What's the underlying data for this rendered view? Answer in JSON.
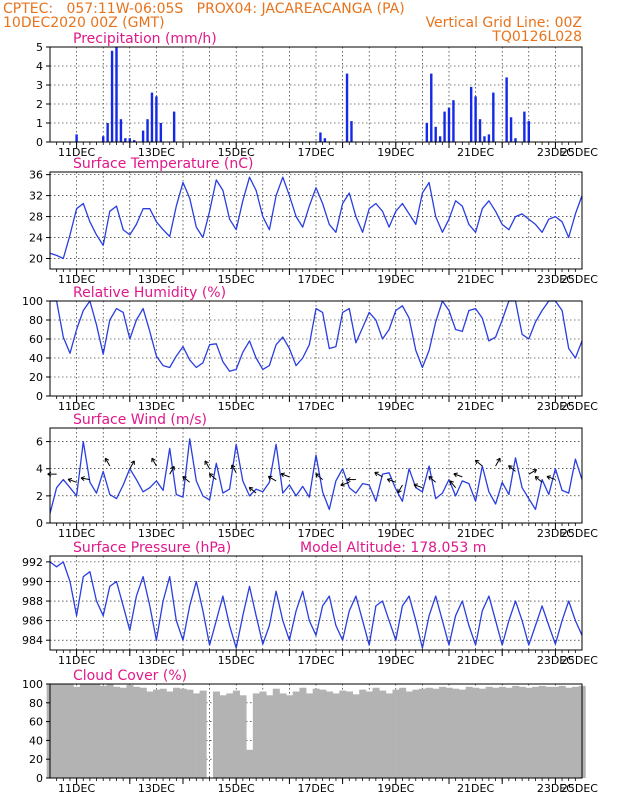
{
  "header": {
    "line1_left": "CPTEC:   057:11W-06:05S   PROX04: JACAREACANGA (PA)",
    "line2_left": "10DEC2020 00Z (GMT)",
    "line2_right": "Vertical Grid Line: 00Z",
    "line3_right": "TQ0126L028"
  },
  "colors": {
    "header": "#e8731c",
    "titles": "#e0198a",
    "series": "#2a3ee0",
    "bars": "#1428e6",
    "cloud": "#b3b3b3",
    "grid": "#000000"
  },
  "x_ticks": [
    "11DEC",
    "13DEC",
    "15DEC",
    "17DEC",
    "19DEC",
    "21DEC",
    "23DEC",
    "25DEC"
  ],
  "chart_data": [
    {
      "type": "bar",
      "title": "Precipitation (mm/h)",
      "ylim": [
        0,
        5
      ],
      "yticks": [
        0,
        1,
        2,
        3,
        4,
        5
      ],
      "x_hours": [
        24,
        48,
        52,
        56,
        60,
        64,
        68,
        72,
        76,
        84,
        88,
        92,
        96,
        100,
        112,
        244,
        248,
        268,
        272,
        340,
        344,
        348,
        352,
        356,
        360,
        364,
        380,
        384,
        388,
        392,
        396,
        400,
        412,
        416,
        420,
        428,
        432
      ],
      "values": [
        0.4,
        0.3,
        1.0,
        4.8,
        5.0,
        1.2,
        0.2,
        0.2,
        0.1,
        0.6,
        1.2,
        2.6,
        2.4,
        1.0,
        1.6,
        0.5,
        0.2,
        3.6,
        1.1,
        1.0,
        3.6,
        0.8,
        0.3,
        1.6,
        1.8,
        2.2,
        2.9,
        2.4,
        1.2,
        0.3,
        0.4,
        2.6,
        3.4,
        1.3,
        0.2,
        1.6,
        1.1
      ],
      "grid": true
    },
    {
      "type": "line",
      "title": "Surface Temperature (nC)",
      "ylim": [
        18,
        36.5
      ],
      "yticks": [
        20,
        24,
        28,
        32,
        36
      ],
      "x_hours": [
        0,
        6,
        12,
        18,
        24,
        30,
        36,
        42,
        48,
        54,
        60,
        66,
        72,
        78,
        84,
        90,
        96,
        102,
        108,
        114,
        120,
        126,
        132,
        138,
        144,
        150,
        156,
        162,
        168,
        174,
        180,
        186,
        192,
        198,
        204,
        210,
        216,
        222,
        228,
        234,
        240,
        246,
        252,
        258,
        264,
        270,
        276,
        282,
        288,
        294,
        300,
        306,
        312,
        318,
        324,
        330,
        336,
        342,
        348,
        354,
        360,
        366,
        372,
        378,
        384,
        390,
        396,
        402,
        408,
        414,
        420,
        426,
        432,
        438,
        444,
        450,
        456,
        462,
        468,
        474,
        480
      ],
      "values": [
        21,
        20.6,
        20,
        24.5,
        29.5,
        30.5,
        27,
        24.5,
        22.5,
        29,
        30,
        25.5,
        24.5,
        26.5,
        29.5,
        29.5,
        27,
        25.5,
        24.2,
        30,
        34.5,
        31.5,
        26,
        24,
        29,
        35,
        33,
        27.5,
        25.5,
        31,
        35.5,
        33,
        28,
        25.5,
        32,
        35.5,
        32,
        28,
        26,
        30,
        33.5,
        30.5,
        26.5,
        25,
        30.5,
        32.5,
        28,
        25,
        29.5,
        30.5,
        29,
        26,
        29,
        30.5,
        28.5,
        26.5,
        32.5,
        34.5,
        28,
        25,
        27.5,
        31,
        30,
        26.5,
        25,
        29.5,
        31,
        29,
        26.5,
        25.5,
        28,
        28.5,
        27.5,
        26.5,
        25,
        27.5,
        28,
        27,
        24,
        28.5,
        32
      ]
    },
    {
      "type": "line",
      "title": "Relative Humidity (%)",
      "ylim": [
        0,
        100
      ],
      "yticks": [
        0,
        20,
        40,
        60,
        80,
        100
      ],
      "x_hours": [
        0,
        6,
        12,
        18,
        24,
        30,
        36,
        42,
        48,
        54,
        60,
        66,
        72,
        78,
        84,
        90,
        96,
        102,
        108,
        114,
        120,
        126,
        132,
        138,
        144,
        150,
        156,
        162,
        168,
        174,
        180,
        186,
        192,
        198,
        204,
        210,
        216,
        222,
        228,
        234,
        240,
        246,
        252,
        258,
        264,
        270,
        276,
        282,
        288,
        294,
        300,
        306,
        312,
        318,
        324,
        330,
        336,
        342,
        348,
        354,
        360,
        366,
        372,
        378,
        384,
        390,
        396,
        402,
        408,
        414,
        420,
        426,
        432,
        438,
        444,
        450,
        456,
        462,
        468,
        474,
        480
      ],
      "values": [
        100,
        100,
        62,
        45,
        70,
        90,
        100,
        75,
        44,
        80,
        92,
        88,
        60,
        80,
        92,
        68,
        42,
        32,
        30,
        42,
        52,
        38,
        30,
        35,
        54,
        55,
        36,
        26,
        28,
        46,
        58,
        40,
        28,
        32,
        54,
        62,
        50,
        32,
        40,
        54,
        92,
        88,
        50,
        52,
        88,
        92,
        56,
        72,
        88,
        80,
        60,
        70,
        90,
        95,
        82,
        48,
        30,
        48,
        78,
        100,
        90,
        70,
        68,
        90,
        92,
        82,
        58,
        62,
        80,
        100,
        100,
        65,
        60,
        78,
        90,
        100,
        100,
        90,
        50,
        40,
        58
      ]
    },
    {
      "type": "line",
      "title": "Surface Wind (m/s)",
      "ylim": [
        0,
        7
      ],
      "yticks": [
        0,
        2,
        4,
        6
      ],
      "x_hours": [
        0,
        6,
        12,
        18,
        24,
        30,
        36,
        42,
        48,
        54,
        60,
        66,
        72,
        78,
        84,
        90,
        96,
        102,
        108,
        114,
        120,
        126,
        132,
        138,
        144,
        150,
        156,
        162,
        168,
        174,
        180,
        186,
        192,
        198,
        204,
        210,
        216,
        222,
        228,
        234,
        240,
        246,
        252,
        258,
        264,
        270,
        276,
        282,
        288,
        294,
        300,
        306,
        312,
        318,
        324,
        330,
        336,
        342,
        348,
        354,
        360,
        366,
        372,
        378,
        384,
        390,
        396,
        402,
        408,
        414,
        420,
        426,
        432,
        438,
        444,
        450,
        456,
        462,
        468,
        474,
        480
      ],
      "values": [
        0.7,
        2.6,
        3.2,
        2.6,
        2.0,
        6.0,
        3.0,
        2.2,
        3.8,
        2.1,
        1.8,
        2.8,
        4.0,
        3.2,
        2.3,
        2.6,
        3.1,
        2.4,
        5.5,
        2.1,
        1.9,
        6.2,
        3.1,
        2.0,
        1.7,
        4.4,
        2.2,
        2.5,
        5.8,
        3.1,
        2.0,
        2.5,
        2.3,
        3.0,
        5.8,
        2.2,
        2.8,
        2.0,
        2.7,
        1.9,
        5.0,
        2.3,
        1.0,
        3.1,
        4.0,
        2.6,
        2.2,
        2.9,
        2.8,
        1.6,
        3.6,
        3.7,
        2.5,
        1.6,
        4.0,
        2.6,
        2.3,
        4.2,
        1.8,
        2.2,
        3.2,
        2.0,
        3.1,
        2.9,
        1.6,
        4.2,
        2.3,
        1.4,
        3.0,
        2.1,
        4.8,
        2.6,
        1.8,
        1.0,
        3.2,
        2.1,
        4.0,
        2.4,
        2.2,
        4.7,
        3.2
      ]
    },
    {
      "type": "line",
      "title": "Surface Pressure (hPa)",
      "subtitle": "Model Altitude: 178.053 m",
      "ylim": [
        983,
        992.6
      ],
      "yticks": [
        984,
        986,
        988,
        990,
        992
      ],
      "x_hours": [
        0,
        6,
        12,
        18,
        24,
        30,
        36,
        42,
        48,
        54,
        60,
        66,
        72,
        78,
        84,
        90,
        96,
        102,
        108,
        114,
        120,
        126,
        132,
        138,
        144,
        150,
        156,
        162,
        168,
        174,
        180,
        186,
        192,
        198,
        204,
        210,
        216,
        222,
        228,
        234,
        240,
        246,
        252,
        258,
        264,
        270,
        276,
        282,
        288,
        294,
        300,
        306,
        312,
        318,
        324,
        330,
        336,
        342,
        348,
        354,
        360,
        366,
        372,
        378,
        384,
        390,
        396,
        402,
        408,
        414,
        420,
        426,
        432,
        438,
        444,
        450,
        456,
        462,
        468,
        474,
        480
      ],
      "values": [
        992,
        991.5,
        992,
        990,
        986.5,
        990.5,
        991,
        988,
        986.5,
        989.5,
        990,
        987.5,
        985,
        988.5,
        990.5,
        987.5,
        984,
        988,
        990.5,
        986,
        984,
        987.5,
        990,
        987,
        983.5,
        986,
        988.5,
        985.5,
        983.2,
        986.5,
        989.5,
        986.5,
        983.6,
        985.5,
        989,
        986,
        984,
        987,
        989,
        986,
        984.5,
        987.5,
        988.5,
        985.5,
        984,
        987,
        988.5,
        986,
        983.5,
        987.5,
        988,
        986,
        984,
        987.5,
        988.5,
        986,
        983.2,
        986.5,
        988.5,
        986,
        983.5,
        986.5,
        988,
        985.5,
        983.5,
        987,
        988.5,
        986,
        983.5,
        986,
        988,
        986,
        983.5,
        985.5,
        987.5,
        985.5,
        983.6,
        986,
        988,
        986,
        984.5
      ]
    },
    {
      "type": "area",
      "title": "Cloud Cover (%)",
      "ylim": [
        0,
        100
      ],
      "yticks": [
        0,
        20,
        40,
        60,
        80,
        100
      ],
      "x_hours": [
        0,
        6,
        12,
        18,
        24,
        30,
        36,
        42,
        48,
        54,
        60,
        66,
        72,
        78,
        84,
        90,
        96,
        102,
        108,
        114,
        120,
        126,
        132,
        138,
        144,
        150,
        156,
        162,
        168,
        174,
        180,
        186,
        192,
        198,
        204,
        210,
        216,
        222,
        228,
        234,
        240,
        246,
        252,
        258,
        264,
        270,
        276,
        282,
        288,
        294,
        300,
        306,
        312,
        318,
        324,
        330,
        336,
        342,
        348,
        354,
        360,
        366,
        372,
        378,
        384,
        390,
        396,
        402,
        408,
        414,
        420,
        426,
        432,
        438,
        444,
        450,
        456,
        462,
        468,
        474,
        480
      ],
      "values": [
        100,
        100,
        100,
        100,
        97,
        100,
        100,
        100,
        98,
        100,
        97,
        96,
        99,
        97,
        96,
        92,
        94,
        95,
        92,
        96,
        95,
        94,
        90,
        93,
        0,
        92,
        88,
        90,
        93,
        88,
        30,
        90,
        92,
        88,
        95,
        90,
        88,
        92,
        96,
        90,
        95,
        94,
        92,
        90,
        93,
        92,
        89,
        94,
        92,
        96,
        93,
        90,
        94,
        96,
        92,
        94,
        95,
        96,
        95,
        97,
        96,
        95,
        94,
        97,
        96,
        95,
        97,
        96,
        97,
        96,
        98,
        97,
        96,
        97,
        98,
        97,
        97,
        98,
        96,
        97,
        98
      ]
    }
  ]
}
